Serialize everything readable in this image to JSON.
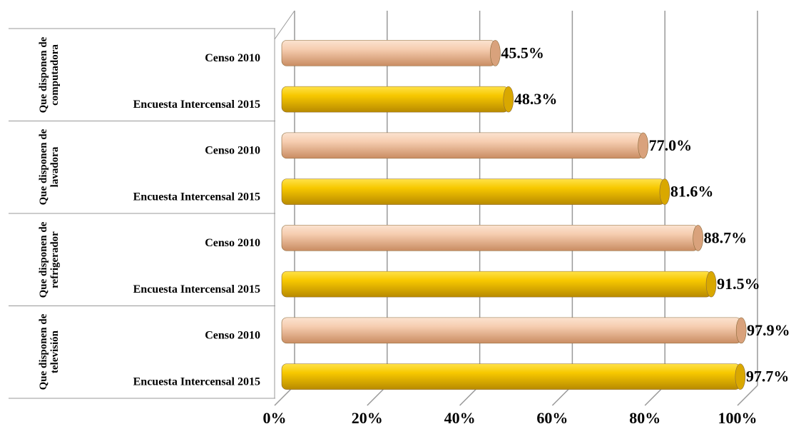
{
  "chart_data": {
    "type": "bar",
    "orientation": "horizontal",
    "categories": [
      "Que disponen de computadora",
      "Que disponen de lavadora",
      "Que disponen de refrigerador",
      "Que disponen de televisión"
    ],
    "series": [
      {
        "name": "Censo 2010",
        "color": "#f4c3a0",
        "values": [
          45.5,
          77,
          88.7,
          97.9
        ],
        "value_labels": [
          "45.5%",
          "77.0%",
          "88.7%",
          "97.9%"
        ]
      },
      {
        "name": "Encuesta Intercensal 2015",
        "color": "#f5c400",
        "values": [
          48.3,
          81.6,
          91.5,
          97.7
        ],
        "value_labels": [
          "48.3%",
          "81.6%",
          "91.5%",
          "97.7%"
        ]
      }
    ],
    "xlim": [
      0,
      100
    ],
    "xticks": [
      {
        "value": 0,
        "label": "0%"
      },
      {
        "value": 20,
        "label": "20%"
      },
      {
        "value": 40,
        "label": "40%"
      },
      {
        "value": 60,
        "label": "60%"
      },
      {
        "value": 80,
        "label": "80%"
      },
      {
        "value": 100,
        "label": "100%"
      }
    ],
    "grid": true
  }
}
